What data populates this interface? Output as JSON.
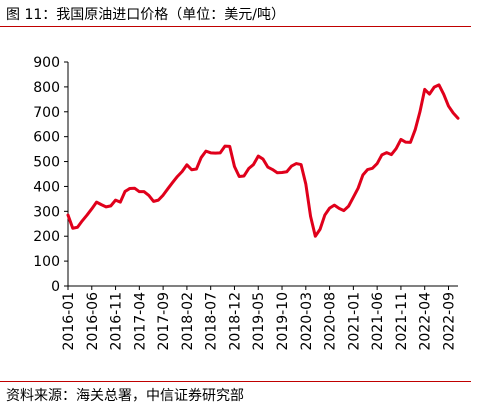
{
  "figure": {
    "title": "图 11：我国原油进口价格（单位：美元/吨）",
    "source": "资料来源：海关总署，中信证券研究部"
  },
  "chart_data": {
    "type": "line",
    "title": "我国原油进口价格（单位：美元/吨）",
    "xlabel": "",
    "ylabel": "",
    "ylim": [
      0,
      900
    ],
    "yticks": [
      0,
      100,
      200,
      300,
      400,
      500,
      600,
      700,
      800,
      900
    ],
    "xtick_labels": [
      "2016-01",
      "2016-06",
      "2016-11",
      "2017-04",
      "2017-09",
      "2018-02",
      "2018-07",
      "2018-12",
      "2019-05",
      "2019-10",
      "2020-03",
      "2020-08",
      "2021-01",
      "2021-06",
      "2021-11",
      "2022-04",
      "2022-09"
    ],
    "grid": false,
    "line_color": "#e0001b",
    "x": [
      "2016-01",
      "2016-02",
      "2016-03",
      "2016-04",
      "2016-05",
      "2016-06",
      "2016-07",
      "2016-08",
      "2016-09",
      "2016-10",
      "2016-11",
      "2016-12",
      "2017-01",
      "2017-02",
      "2017-03",
      "2017-04",
      "2017-05",
      "2017-06",
      "2017-07",
      "2017-08",
      "2017-09",
      "2017-10",
      "2017-11",
      "2017-12",
      "2018-01",
      "2018-02",
      "2018-03",
      "2018-04",
      "2018-05",
      "2018-06",
      "2018-07",
      "2018-08",
      "2018-09",
      "2018-10",
      "2018-11",
      "2018-12",
      "2019-01",
      "2019-02",
      "2019-03",
      "2019-04",
      "2019-05",
      "2019-06",
      "2019-07",
      "2019-08",
      "2019-09",
      "2019-10",
      "2019-11",
      "2019-12",
      "2020-01",
      "2020-02",
      "2020-03",
      "2020-04",
      "2020-05",
      "2020-06",
      "2020-07",
      "2020-08",
      "2020-09",
      "2020-10",
      "2020-11",
      "2020-12",
      "2021-01",
      "2021-02",
      "2021-03",
      "2021-04",
      "2021-05",
      "2021-06",
      "2021-07",
      "2021-08",
      "2021-09",
      "2021-10",
      "2021-11",
      "2021-12",
      "2022-01",
      "2022-02",
      "2022-03",
      "2022-04",
      "2022-05",
      "2022-06",
      "2022-07",
      "2022-08",
      "2022-09",
      "2022-10",
      "2022-11"
    ],
    "series": [
      {
        "values": [
          285,
          232,
          236,
          262,
          285,
          310,
          337,
          327,
          318,
          322,
          345,
          337,
          380,
          392,
          393,
          379,
          379,
          364,
          340,
          345,
          365,
          391,
          416,
          440,
          460,
          487,
          467,
          470,
          516,
          542,
          535,
          534,
          535,
          562,
          561,
          480,
          440,
          442,
          472,
          488,
          522,
          510,
          478,
          468,
          455,
          456,
          459,
          482,
          492,
          488,
          410,
          280,
          200,
          228,
          285,
          313,
          325,
          312,
          303,
          321,
          357,
          393,
          446,
          468,
          473,
          492,
          527,
          536,
          528,
          552,
          589,
          578,
          577,
          628,
          700,
          790,
          771,
          799,
          808,
          770,
          723,
          695,
          674
        ]
      }
    ]
  }
}
